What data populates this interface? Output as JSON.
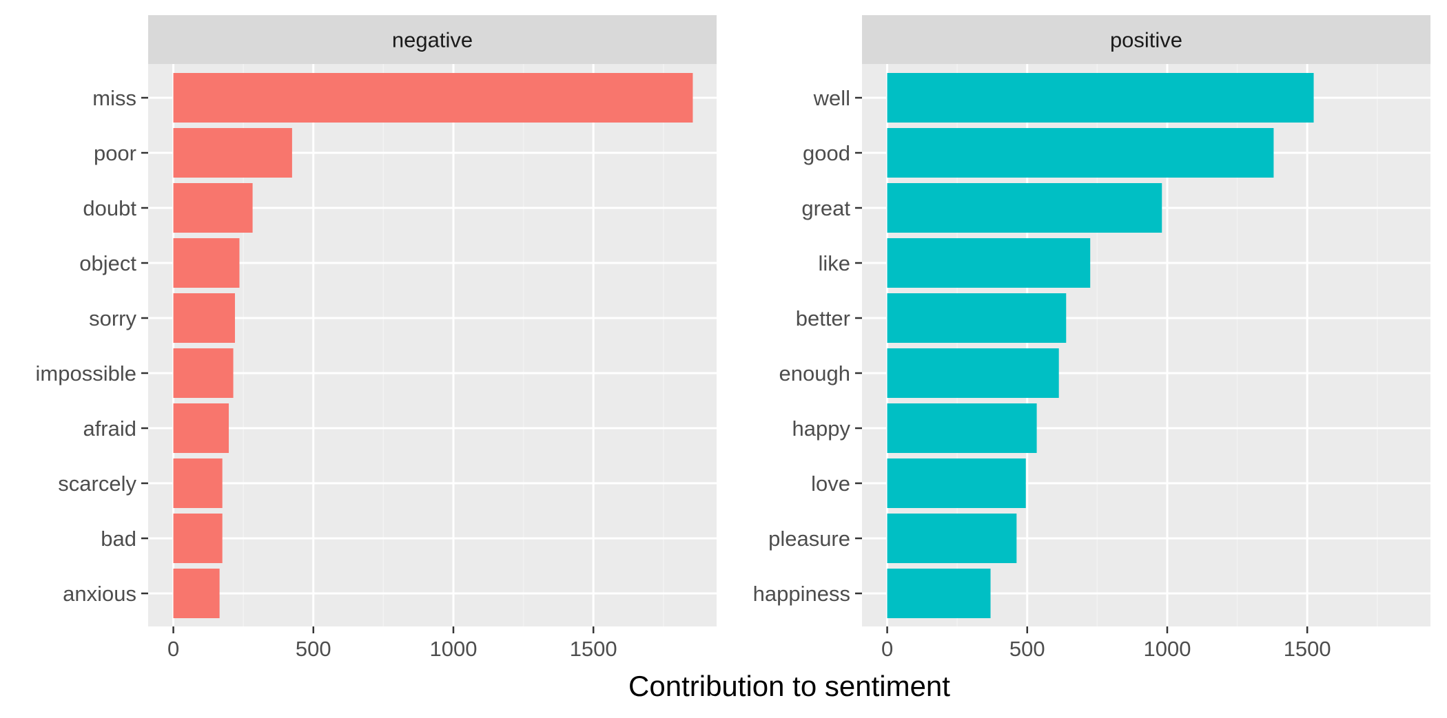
{
  "chart_data": {
    "type": "bar",
    "orientation": "horizontal",
    "xlabel": "Contribution to sentiment",
    "ylabel": "",
    "xlim": [
      -90,
      1940
    ],
    "x_ticks": [
      0,
      500,
      1000,
      1500
    ],
    "grid": true,
    "legend": "none",
    "facets": [
      {
        "name": "negative",
        "color": "#F8766D",
        "categories": [
          "miss",
          "poor",
          "doubt",
          "object",
          "sorry",
          "impossible",
          "afraid",
          "scarcely",
          "bad",
          "anxious"
        ],
        "values": [
          1855,
          424,
          283,
          236,
          220,
          214,
          198,
          175,
          175,
          165
        ]
      },
      {
        "name": "positive",
        "color": "#00BFC4",
        "categories": [
          "well",
          "good",
          "great",
          "like",
          "better",
          "enough",
          "happy",
          "love",
          "pleasure",
          "happiness"
        ],
        "values": [
          1523,
          1380,
          981,
          725,
          639,
          613,
          534,
          495,
          462,
          369
        ]
      }
    ]
  },
  "style": {
    "panel_bg": "#EBEBEB",
    "strip_bg": "#D9D9D9",
    "grid_major": "#FFFFFF",
    "grid_minor": "#F2F2F2",
    "tick_color": "#333333"
  }
}
